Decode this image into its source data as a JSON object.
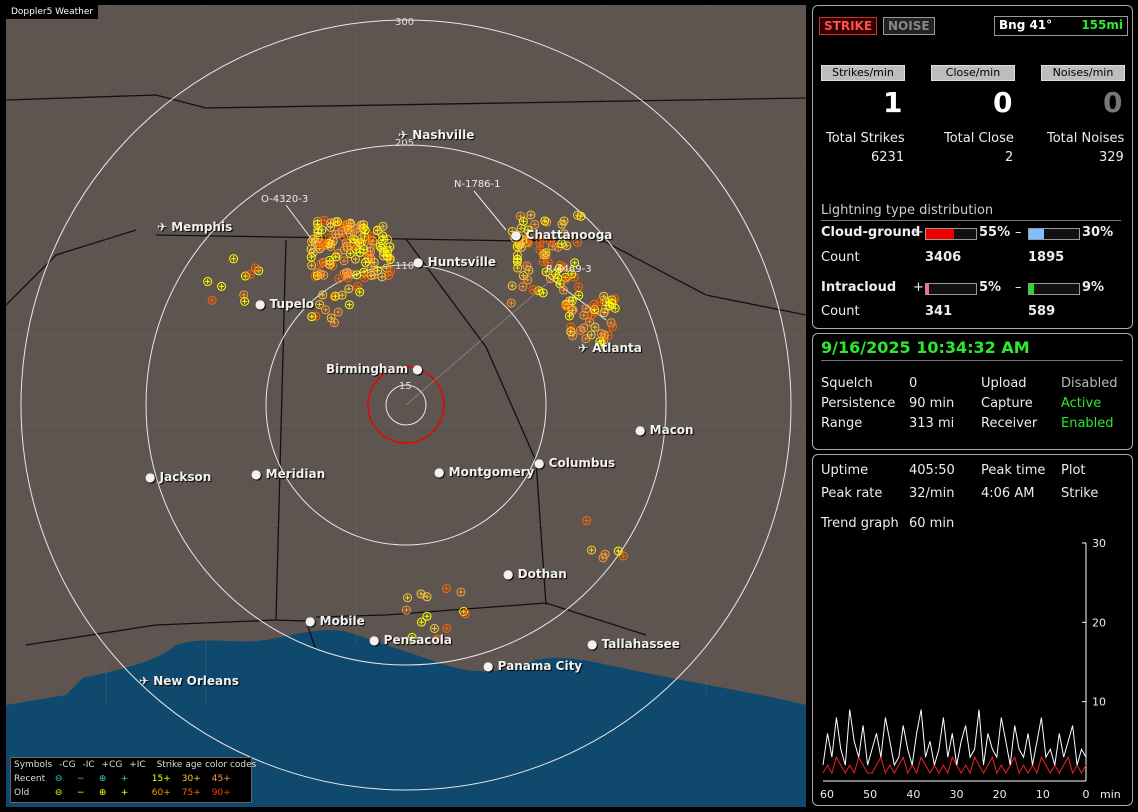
{
  "app_title": "Doppler5 Weather",
  "map": {
    "rings": [
      {
        "label": "300"
      },
      {
        "label": "205"
      },
      {
        "label": "110"
      },
      {
        "label": "15"
      }
    ],
    "cities": [
      {
        "name": "Nashville",
        "icon": "airport-icon"
      },
      {
        "name": "Memphis",
        "icon": "airport-icon"
      },
      {
        "name": "Chattanooga",
        "icon": "city-dot-icon"
      },
      {
        "name": "Huntsville",
        "icon": "city-dot-icon"
      },
      {
        "name": "Tupelo",
        "icon": "city-dot-icon"
      },
      {
        "name": "Atlanta",
        "icon": "airport-icon"
      },
      {
        "name": "Birmingham",
        "icon": "city-dot-icon"
      },
      {
        "name": "Macon",
        "icon": "city-dot-icon"
      },
      {
        "name": "Jackson",
        "icon": "city-dot-icon"
      },
      {
        "name": "Meridian",
        "icon": "city-dot-icon"
      },
      {
        "name": "Montgomery",
        "icon": "city-dot-icon"
      },
      {
        "name": "Columbus",
        "icon": "city-dot-icon"
      },
      {
        "name": "Dothan",
        "icon": "city-dot-icon"
      },
      {
        "name": "Mobile",
        "icon": "city-dot-icon"
      },
      {
        "name": "Pensacola",
        "icon": "city-dot-icon"
      },
      {
        "name": "Tallahassee",
        "icon": "city-dot-icon"
      },
      {
        "name": "Panama City",
        "icon": "city-dot-icon"
      },
      {
        "name": "New Orleans",
        "icon": "airport-icon"
      }
    ],
    "storms": [
      "O-4320-3",
      "N-1786-1",
      "R-4469-3"
    ]
  },
  "legend": {
    "symbols_label": "Symbols",
    "cg_minus": "-CG",
    "ic_minus": "-IC",
    "cg_plus": "+CG",
    "ic_plus": "+IC",
    "age_title": "Strike age color codes",
    "recent_label": "Recent",
    "old_label": "Old",
    "recent_ages": [
      "15+",
      "30+",
      "45+"
    ],
    "old_ages": [
      "60+",
      "75+",
      "90+"
    ]
  },
  "status": {
    "strike": "STRIKE",
    "noise": "NOISE",
    "bearing": "Bng 41°",
    "distance": "155mi",
    "strikes_min_label": "Strikes/min",
    "close_min_label": "Close/min",
    "noises_min_label": "Noises/min",
    "strikes_min": "1",
    "close_min": "0",
    "noises_min": "0",
    "total_strikes_label": "Total Strikes",
    "total_close_label": "Total Close",
    "total_noises_label": "Total Noises",
    "total_strikes": "6231",
    "total_close": "2",
    "total_noises": "329",
    "dist_title": "Lightning type distribution",
    "cg_label": "Cloud-ground",
    "ic_label": "Intracloud",
    "count_label": "Count",
    "plus": "+",
    "minus": "–",
    "cg_pos_pct": "55%",
    "cg_neg_pct": "30%",
    "cg_pos_count": "3406",
    "cg_neg_count": "1895",
    "ic_pos_pct": "5%",
    "ic_neg_pct": "9%",
    "ic_pos_count": "341",
    "ic_neg_count": "589",
    "cg_pos_frac": 0.55,
    "cg_neg_frac": 0.3,
    "ic_pos_frac": 0.05,
    "ic_neg_frac": 0.09
  },
  "settings": {
    "datetime": "9/16/2025 10:34:32 AM",
    "squelch_label": "Squelch",
    "squelch": "0",
    "persistence_label": "Persistence",
    "persistence": "90 min",
    "range_label": "Range",
    "range": "313 mi",
    "upload_label": "Upload",
    "upload": "Disabled",
    "capture_label": "Capture",
    "capture": "Active",
    "receiver_label": "Receiver",
    "receiver": "Enabled"
  },
  "trend": {
    "uptime_label": "Uptime",
    "uptime": "405:50",
    "peak_time_label": "Peak time",
    "peak_time": "4:06 AM",
    "plot_label": "Plot",
    "plot": "Strike",
    "peak_rate_label": "Peak rate",
    "peak_rate": "32/min",
    "trend_graph_label": "Trend graph",
    "trend_graph": "60 min",
    "y_ticks": [
      "30",
      "20",
      "10"
    ],
    "x_ticks": [
      "60",
      "50",
      "40",
      "30",
      "20",
      "10",
      "0"
    ],
    "x_unit": "min",
    "white": [
      2,
      6,
      3,
      8,
      4,
      2,
      9,
      5,
      3,
      7,
      2,
      4,
      6,
      3,
      8,
      5,
      2,
      3,
      7,
      4,
      2,
      6,
      9,
      3,
      5,
      2,
      4,
      8,
      3,
      6,
      2,
      5,
      7,
      3,
      4,
      9,
      2,
      6,
      4,
      3,
      8,
      5,
      2,
      7,
      4,
      3,
      6,
      2,
      5,
      8,
      3,
      4,
      2,
      6,
      3,
      5,
      7,
      2,
      4,
      3
    ],
    "red": [
      1,
      2,
      1,
      3,
      2,
      1,
      2,
      1,
      3,
      2,
      1,
      1,
      2,
      3,
      1,
      2,
      1,
      2,
      3,
      1,
      2,
      1,
      3,
      2,
      1,
      2,
      1,
      2,
      1,
      3,
      2,
      1,
      2,
      1,
      3,
      2,
      1,
      2,
      3,
      1,
      2,
      1,
      2,
      3,
      1,
      2,
      1,
      2,
      1,
      3,
      2,
      1,
      2,
      1,
      2,
      3,
      1,
      2,
      1,
      2
    ]
  }
}
